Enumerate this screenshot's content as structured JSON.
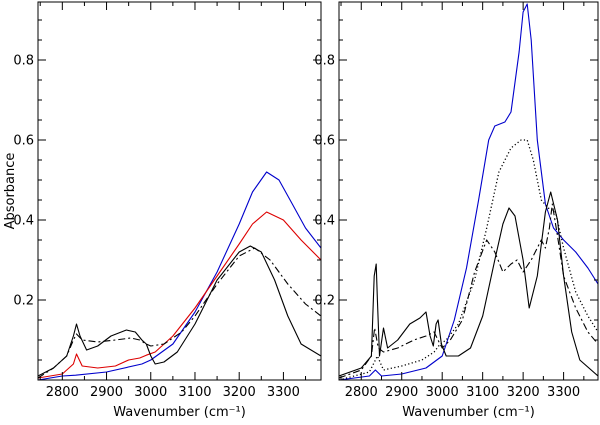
{
  "chart_data": [
    {
      "type": "line",
      "panel": "left",
      "xlabel": "Wavenumber (cm⁻¹)",
      "ylabel": "Absorbance",
      "xlim": [
        2745,
        3385
      ],
      "ylim": [
        0,
        0.945
      ],
      "xticks": [
        2800,
        2900,
        3000,
        3100,
        3200,
        3300
      ],
      "yticks": [
        0.2,
        0.4,
        0.6,
        0.8
      ],
      "series": [
        {
          "name": "blue",
          "color": "#0000cc",
          "dash": "solid",
          "x": [
            2745,
            2800,
            2830,
            2900,
            2980,
            3000,
            3050,
            3100,
            3150,
            3200,
            3230,
            3262,
            3290,
            3320,
            3350,
            3385
          ],
          "y": [
            0.0,
            0.01,
            0.012,
            0.02,
            0.04,
            0.05,
            0.09,
            0.17,
            0.27,
            0.39,
            0.47,
            0.52,
            0.5,
            0.44,
            0.38,
            0.33
          ]
        },
        {
          "name": "red",
          "color": "#dd0000",
          "dash": "solid",
          "x": [
            2745,
            2800,
            2825,
            2832,
            2845,
            2880,
            2920,
            2950,
            2975,
            2990,
            3010,
            3050,
            3100,
            3150,
            3200,
            3230,
            3262,
            3300,
            3340,
            3385
          ],
          "y": [
            0.005,
            0.015,
            0.04,
            0.065,
            0.035,
            0.03,
            0.035,
            0.05,
            0.055,
            0.062,
            0.07,
            0.11,
            0.18,
            0.26,
            0.34,
            0.39,
            0.42,
            0.4,
            0.35,
            0.3
          ]
        },
        {
          "name": "black-solid",
          "color": "#000000",
          "dash": "solid",
          "x": [
            2745,
            2780,
            2810,
            2825,
            2832,
            2840,
            2855,
            2880,
            2910,
            2945,
            2965,
            2980,
            2990,
            3000,
            3010,
            3030,
            3060,
            3100,
            3150,
            3200,
            3225,
            3250,
            3280,
            3310,
            3340,
            3385
          ],
          "y": [
            0.01,
            0.03,
            0.06,
            0.11,
            0.14,
            0.11,
            0.075,
            0.085,
            0.11,
            0.125,
            0.12,
            0.1,
            0.09,
            0.06,
            0.04,
            0.045,
            0.07,
            0.14,
            0.25,
            0.32,
            0.335,
            0.32,
            0.25,
            0.16,
            0.09,
            0.06
          ]
        },
        {
          "name": "black-dashdot",
          "color": "#000000",
          "dash": "dashdot",
          "x": [
            2745,
            2780,
            2810,
            2825,
            2832,
            2845,
            2880,
            2920,
            2955,
            2975,
            2990,
            3000,
            3030,
            3070,
            3100,
            3150,
            3200,
            3235,
            3270,
            3310,
            3350,
            3385
          ],
          "y": [
            0.005,
            0.03,
            0.06,
            0.1,
            0.115,
            0.1,
            0.095,
            0.1,
            0.105,
            0.1,
            0.09,
            0.085,
            0.09,
            0.12,
            0.16,
            0.24,
            0.31,
            0.33,
            0.3,
            0.24,
            0.19,
            0.16
          ]
        }
      ]
    },
    {
      "type": "line",
      "panel": "right",
      "xlabel": "Wavenumber (cm⁻¹)",
      "ylabel": "",
      "xlim": [
        2745,
        3385
      ],
      "ylim": [
        0,
        0.945
      ],
      "xticks": [
        2800,
        2900,
        3000,
        3100,
        3200,
        3300
      ],
      "yticks": [
        0.2,
        0.4,
        0.6,
        0.8
      ],
      "series": [
        {
          "name": "blue",
          "color": "#0000cc",
          "dash": "solid",
          "x": [
            2745,
            2820,
            2835,
            2850,
            2900,
            2960,
            3000,
            3030,
            3060,
            3090,
            3115,
            3130,
            3155,
            3170,
            3190,
            3200,
            3210,
            3220,
            3235,
            3255,
            3275,
            3300,
            3330,
            3360,
            3385
          ],
          "y": [
            0.0,
            0.01,
            0.025,
            0.01,
            0.015,
            0.03,
            0.06,
            0.15,
            0.28,
            0.45,
            0.6,
            0.635,
            0.645,
            0.67,
            0.82,
            0.92,
            0.94,
            0.85,
            0.6,
            0.44,
            0.38,
            0.35,
            0.32,
            0.28,
            0.24
          ]
        },
        {
          "name": "black-dotted",
          "color": "#000000",
          "dash": "dotted",
          "x": [
            2745,
            2820,
            2840,
            2855,
            2900,
            2950,
            2980,
            2995,
            3010,
            3040,
            3080,
            3110,
            3140,
            3170,
            3195,
            3210,
            3225,
            3245,
            3262,
            3280,
            3300,
            3330,
            3360,
            3385
          ],
          "y": [
            0.0,
            0.02,
            0.06,
            0.025,
            0.035,
            0.05,
            0.07,
            0.09,
            0.1,
            0.14,
            0.25,
            0.38,
            0.52,
            0.58,
            0.6,
            0.6,
            0.55,
            0.45,
            0.43,
            0.42,
            0.33,
            0.22,
            0.16,
            0.12
          ]
        },
        {
          "name": "black-solid",
          "color": "#000000",
          "dash": "solid",
          "x": [
            2745,
            2800,
            2825,
            2832,
            2837,
            2840,
            2845,
            2855,
            2865,
            2890,
            2920,
            2945,
            2960,
            2970,
            2978,
            2985,
            2990,
            2998,
            3010,
            3040,
            3070,
            3100,
            3130,
            3150,
            3165,
            3180,
            3200,
            3215,
            3235,
            3255,
            3268,
            3285,
            3300,
            3320,
            3340,
            3385
          ],
          "y": [
            0.01,
            0.03,
            0.06,
            0.26,
            0.29,
            0.2,
            0.06,
            0.13,
            0.08,
            0.1,
            0.14,
            0.155,
            0.17,
            0.11,
            0.085,
            0.14,
            0.15,
            0.09,
            0.06,
            0.06,
            0.08,
            0.16,
            0.3,
            0.39,
            0.43,
            0.41,
            0.3,
            0.18,
            0.26,
            0.42,
            0.47,
            0.4,
            0.26,
            0.12,
            0.05,
            0.01
          ]
        },
        {
          "name": "black-dashdot",
          "color": "#000000",
          "dash": "dashdot",
          "x": [
            2745,
            2800,
            2825,
            2833,
            2842,
            2855,
            2890,
            2930,
            2960,
            2980,
            2992,
            3000,
            3020,
            3050,
            3080,
            3110,
            3130,
            3150,
            3170,
            3185,
            3200,
            3220,
            3245,
            3255,
            3265,
            3272,
            3285,
            3300,
            3330,
            3360,
            3385
          ],
          "y": [
            0.005,
            0.025,
            0.06,
            0.13,
            0.08,
            0.07,
            0.08,
            0.1,
            0.11,
            0.12,
            0.095,
            0.08,
            0.1,
            0.15,
            0.27,
            0.35,
            0.32,
            0.27,
            0.29,
            0.3,
            0.27,
            0.3,
            0.35,
            0.33,
            0.38,
            0.44,
            0.36,
            0.26,
            0.18,
            0.12,
            0.09
          ]
        }
      ]
    }
  ]
}
